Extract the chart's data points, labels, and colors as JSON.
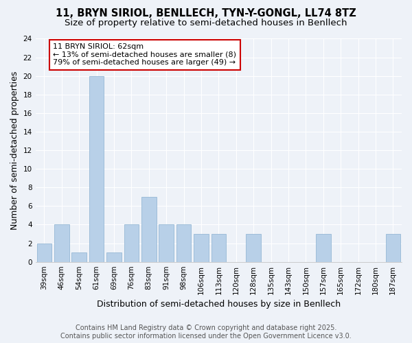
{
  "title_line1": "11, BRYN SIRIOL, BENLLECH, TYN-Y-GONGL, LL74 8TZ",
  "title_line2": "Size of property relative to semi-detached houses in Benllech",
  "xlabel": "Distribution of semi-detached houses by size in Benllech",
  "ylabel": "Number of semi-detached properties",
  "categories": [
    "39sqm",
    "46sqm",
    "54sqm",
    "61sqm",
    "69sqm",
    "76sqm",
    "83sqm",
    "91sqm",
    "98sqm",
    "106sqm",
    "113sqm",
    "120sqm",
    "128sqm",
    "135sqm",
    "143sqm",
    "150sqm",
    "157sqm",
    "165sqm",
    "172sqm",
    "180sqm",
    "187sqm"
  ],
  "values": [
    2,
    4,
    1,
    20,
    1,
    4,
    7,
    4,
    4,
    3,
    3,
    0,
    3,
    0,
    0,
    0,
    3,
    0,
    0,
    0,
    3
  ],
  "highlight_index": 3,
  "bar_color": "#b8d0e8",
  "bar_edge_color": "#8ab0d0",
  "annotation_text": "11 BRYN SIRIOL: 62sqm\n← 13% of semi-detached houses are smaller (8)\n79% of semi-detached houses are larger (49) →",
  "annotation_box_color": "#ffffff",
  "annotation_box_edge": "#cc0000",
  "footer_line1": "Contains HM Land Registry data © Crown copyright and database right 2025.",
  "footer_line2": "Contains public sector information licensed under the Open Government Licence v3.0.",
  "ylim": [
    0,
    24
  ],
  "yticks": [
    0,
    2,
    4,
    6,
    8,
    10,
    12,
    14,
    16,
    18,
    20,
    22,
    24
  ],
  "bg_color": "#eef2f8",
  "grid_color": "#ffffff",
  "title_fontsize": 10.5,
  "subtitle_fontsize": 9.5,
  "axis_label_fontsize": 9,
  "tick_fontsize": 7.5,
  "annotation_fontsize": 8,
  "footer_fontsize": 7
}
